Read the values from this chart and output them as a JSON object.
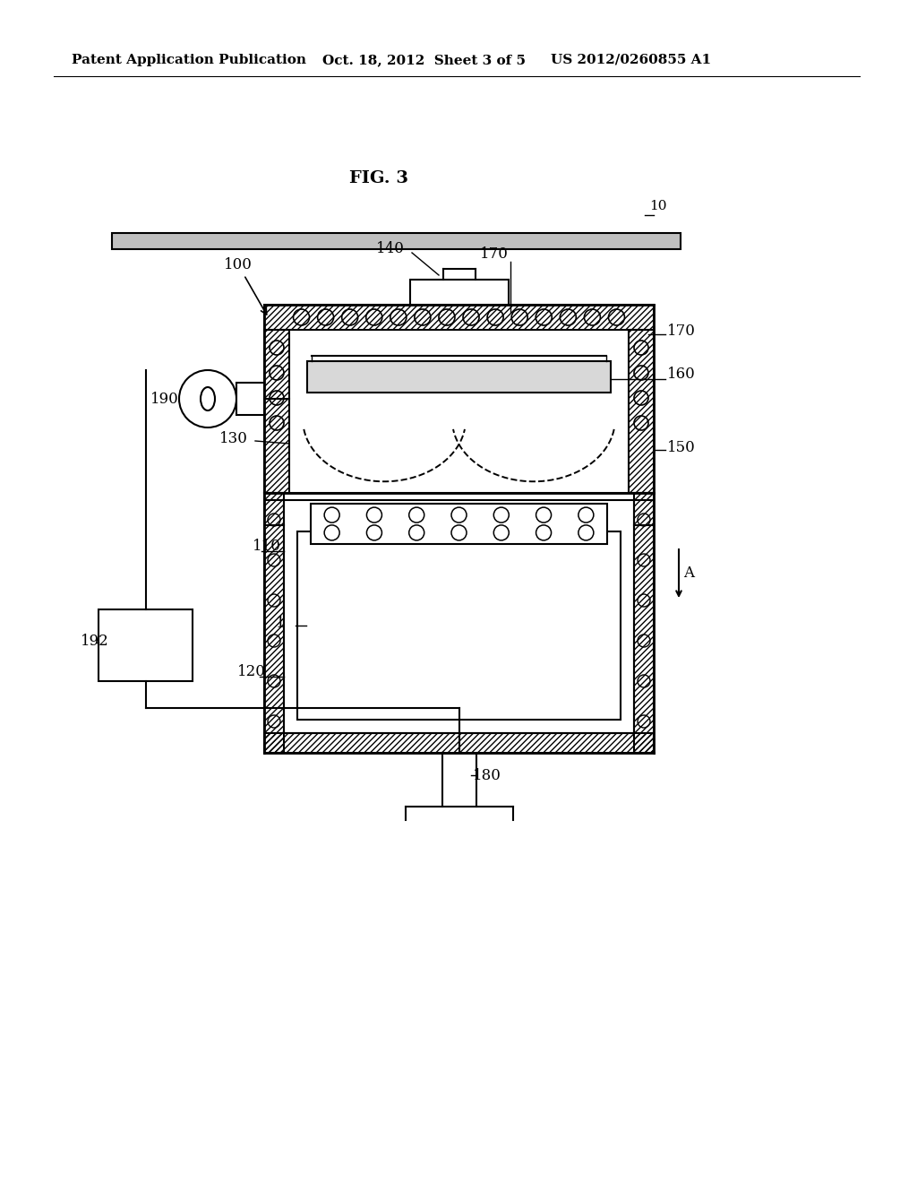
{
  "bg_color": "#ffffff",
  "line_color": "#000000",
  "header_left": "Patent Application Publication",
  "header_mid": "Oct. 18, 2012  Sheet 3 of 5",
  "header_right": "US 2012/0260855 A1",
  "fig_label": "FIG. 3"
}
